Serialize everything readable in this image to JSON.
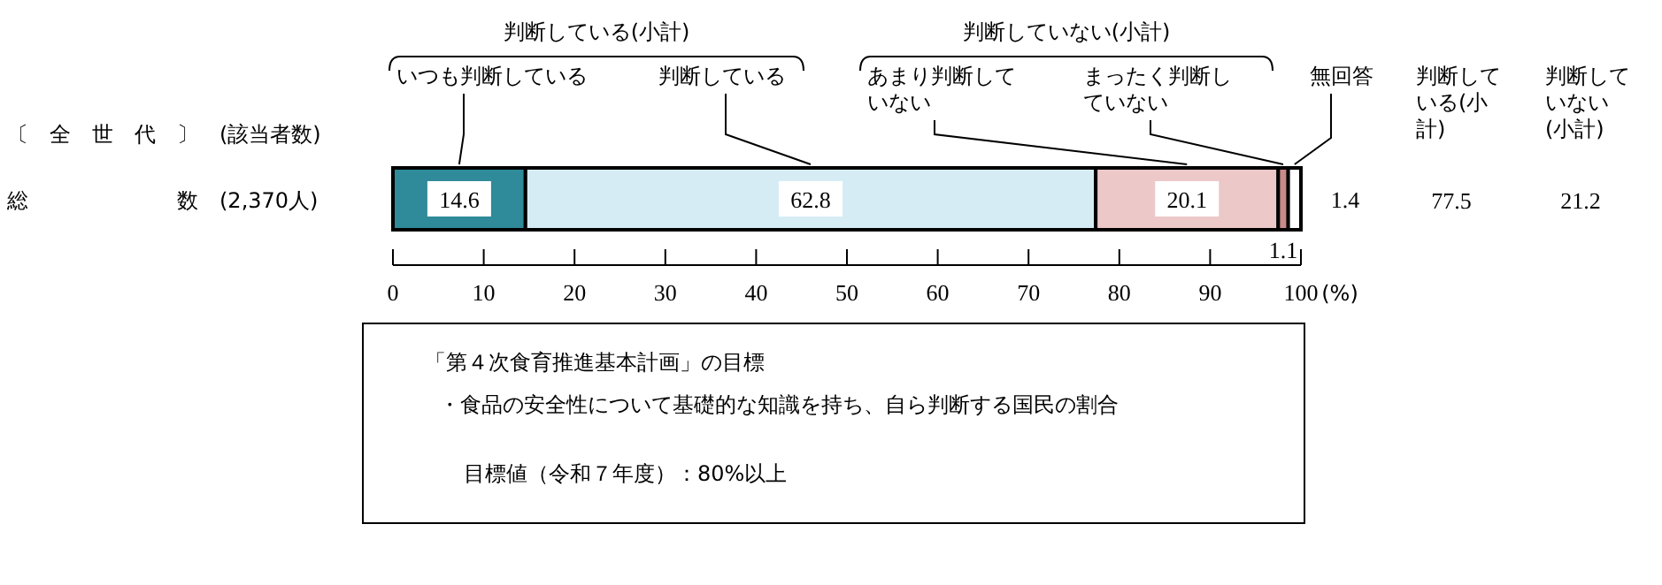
{
  "chart_data": {
    "type": "bar",
    "orientation": "horizontal",
    "stacked": true,
    "categories": [
      "総　　　　　　　数　(2,370人)"
    ],
    "series": [
      {
        "name": "いつも判断している",
        "color": "#2f8a99",
        "values": [
          14.6
        ]
      },
      {
        "name": "判断している",
        "color": "#d6ecf5",
        "values": [
          62.8
        ]
      },
      {
        "name": "あまり判断していない",
        "color": "#ecc8c8",
        "values": [
          20.1
        ]
      },
      {
        "name": "まったく判断していない",
        "color": "#c98a8a",
        "values": [
          1.1
        ]
      },
      {
        "name": "無回答",
        "color": "#ffffff",
        "values": [
          1.4
        ]
      }
    ],
    "xlim": [
      0,
      100
    ],
    "xticks": [
      0,
      10,
      20,
      30,
      40,
      50,
      60,
      70,
      80,
      90,
      100
    ],
    "xlabel": "(%)",
    "data_labels": true,
    "legend": "top",
    "annotations": [
      "判断している(小計)",
      "判断していない(小計)",
      "〔　全　世　代　〕　(該当者数)",
      "判断している(小計)",
      "77.5",
      "判断していない(小計)",
      "21.2",
      "「第４次食育推進基本計画」の目標",
      "・食品の安全性について基礎的な知識を持ち、自ら判断する国民の割合",
      "目標値（令和７年度）：80%以上"
    ]
  }
}
